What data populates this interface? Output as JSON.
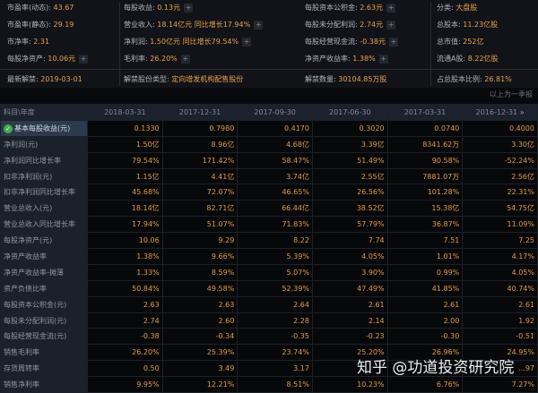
{
  "info": {
    "rows": [
      [
        {
          "label": "市盈率(动态):",
          "value": "43.67"
        },
        {
          "label": "每股收益:",
          "value": "0.13元",
          "plus": true
        },
        {
          "label": "每股资本公积金:",
          "value": "2.63元",
          "plus": true
        },
        {
          "label": "分类:",
          "value": "大盘股"
        }
      ],
      [
        {
          "label": "市盈率(静态):",
          "value": "29.19"
        },
        {
          "label": "营业收入:",
          "value": "18.14亿元 同比增长17.94%",
          "plus": true
        },
        {
          "label": "每股未分配利润:",
          "value": "2.74元",
          "plus": true
        },
        {
          "label": "总股本:",
          "value": "11.23亿股"
        }
      ],
      [
        {
          "label": "市净率:",
          "value": "2.31"
        },
        {
          "label": "净利润:",
          "value": "1.50亿元 同比增长79.54%",
          "plus": true
        },
        {
          "label": "每股经营现金流:",
          "value": "-0.38元",
          "plus": true
        },
        {
          "label": "总市值:",
          "value": "252亿"
        }
      ],
      [
        {
          "label": "每股净资产:",
          "value": "10.06元",
          "plus": true
        },
        {
          "label": "毛利率:",
          "value": "26.20%",
          "plus": true
        },
        {
          "label": "净资产收益率:",
          "value": "1.38%",
          "plus": true
        },
        {
          "label": "流通A股:",
          "value": "8.22亿股"
        }
      ]
    ],
    "unlock": [
      {
        "label": "最新解禁:",
        "value": "2019-03-01"
      },
      {
        "label": "解禁股份类型:",
        "value": "定向增发机构配售股份"
      },
      {
        "label": "解禁数量:",
        "value": "30104.85万股"
      },
      {
        "label": "占总股本比例:",
        "value": "26.81%"
      }
    ],
    "note": "以上为一季报"
  },
  "table": {
    "corner": "科目\\年度",
    "more": "»",
    "columns": [
      "2018-03-31",
      "2017-12-31",
      "2017-09-30",
      "2017-06-30",
      "2017-03-31",
      "2016-12-31"
    ],
    "rows": [
      {
        "label": "基本每股收益(元)",
        "values": [
          "0.1330",
          "0.7980",
          "0.4170",
          "0.3020",
          "0.0740",
          "0.4000"
        ]
      },
      {
        "label": "净利润(元)",
        "values": [
          "1.50亿",
          "8.96亿",
          "4.68亿",
          "3.39亿",
          "8341.62万",
          "3.30亿"
        ]
      },
      {
        "label": "净利润同比增长率",
        "values": [
          "79.54%",
          "171.42%",
          "58.47%",
          "51.49%",
          "90.58%",
          "-52.24%"
        ]
      },
      {
        "label": "扣非净利润(元)",
        "values": [
          "1.15亿",
          "4.41亿",
          "3.74亿",
          "2.55亿",
          "7881.07万",
          "2.56亿"
        ]
      },
      {
        "label": "扣非净利润同比增长率",
        "values": [
          "45.68%",
          "72.07%",
          "46.65%",
          "26.56%",
          "101.28%",
          "22.31%"
        ]
      },
      {
        "label": "营业总收入(元)",
        "values": [
          "18.14亿",
          "82.71亿",
          "66.44亿",
          "38.52亿",
          "15.38亿",
          "54.75亿"
        ]
      },
      {
        "label": "营业总收入同比增长率",
        "values": [
          "17.94%",
          "51.07%",
          "71.83%",
          "57.79%",
          "36.87%",
          "11.09%"
        ]
      },
      {
        "label": "每股净资产(元)",
        "values": [
          "10.06",
          "9.29",
          "8.22",
          "7.74",
          "7.51",
          "7.25"
        ]
      },
      {
        "label": "净资产收益率",
        "values": [
          "1.38%",
          "9.66%",
          "5.39%",
          "4.05%",
          "1.01%",
          "4.17%"
        ]
      },
      {
        "label": "净资产收益率-摊薄",
        "values": [
          "1.33%",
          "8.59%",
          "5.07%",
          "3.90%",
          "0.99%",
          "4.05%"
        ]
      },
      {
        "label": "资产负债比率",
        "values": [
          "50.84%",
          "49.58%",
          "52.39%",
          "47.49%",
          "41.85%",
          "40.74%"
        ]
      },
      {
        "label": "每股资本公积金(元)",
        "values": [
          "2.63",
          "2.63",
          "2.64",
          "2.61",
          "2.61",
          "2.61"
        ]
      },
      {
        "label": "每股未分配利润(元)",
        "values": [
          "2.74",
          "2.60",
          "2.28",
          "2.14",
          "2.00",
          "1.92"
        ]
      },
      {
        "label": "每股经营现金流(元)",
        "values": [
          "-0.38",
          "-0.34",
          "-0.35",
          "-0.23",
          "-0.30",
          "-0.51"
        ]
      },
      {
        "label": "销售毛利率",
        "values": [
          "26.20%",
          "25.39%",
          "23.74%",
          "25.20%",
          "26.96%",
          "24.95%"
        ]
      },
      {
        "label": "存货周转率",
        "values": [
          "0.50",
          "3.49",
          "3.17",
          "",
          "",
          "…97"
        ]
      },
      {
        "label": "销售净利率",
        "values": [
          "9.95%",
          "12.21%",
          "8.51%",
          "10.23%",
          "6.76%",
          "7.27%"
        ]
      }
    ]
  },
  "watermark": "知乎 @功道投资研究院",
  "colors": {
    "value": "#e8a24a",
    "background": "#08090c",
    "label_col": "#1a212b",
    "selected": "#2b3a4d"
  }
}
